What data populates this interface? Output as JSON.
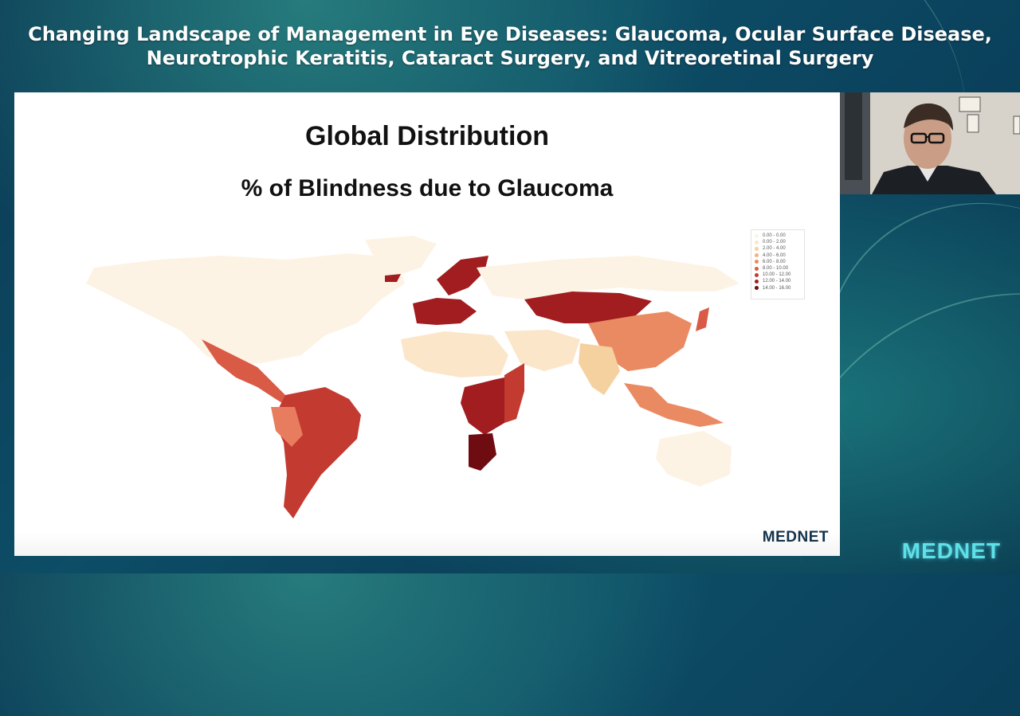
{
  "header": {
    "title_line1": "Changing Landscape of Management in Eye Diseases: Glaucoma, Ocular Surface Disease,",
    "title_line2": "Neurotrophic Keratitis, Cataract Surgery, and Vitreoretinal Surgery"
  },
  "slide": {
    "title": "Global Distribution",
    "subtitle": "% of Blindness due to Glaucoma",
    "logo": "MEDNET",
    "legend": [
      {
        "label": "0.00 - 0.00",
        "color": "#fdf3e4"
      },
      {
        "label": "0.00 - 2.00",
        "color": "#fbe6c9"
      },
      {
        "label": "2.00 - 4.00",
        "color": "#f6d1a0"
      },
      {
        "label": "4.00 - 6.00",
        "color": "#f3b27e"
      },
      {
        "label": "6.00 - 8.00",
        "color": "#ea8a62"
      },
      {
        "label": "8.00 - 10.00",
        "color": "#d95a45"
      },
      {
        "label": "10.00 - 12.00",
        "color": "#c33a30"
      },
      {
        "label": "12.00 - 14.00",
        "color": "#a11d1f"
      },
      {
        "label": "14.00 - 16.00",
        "color": "#6e0c12"
      }
    ]
  },
  "brand": {
    "corner_logo": "MEDNET",
    "accent": "#5ee0e8"
  }
}
